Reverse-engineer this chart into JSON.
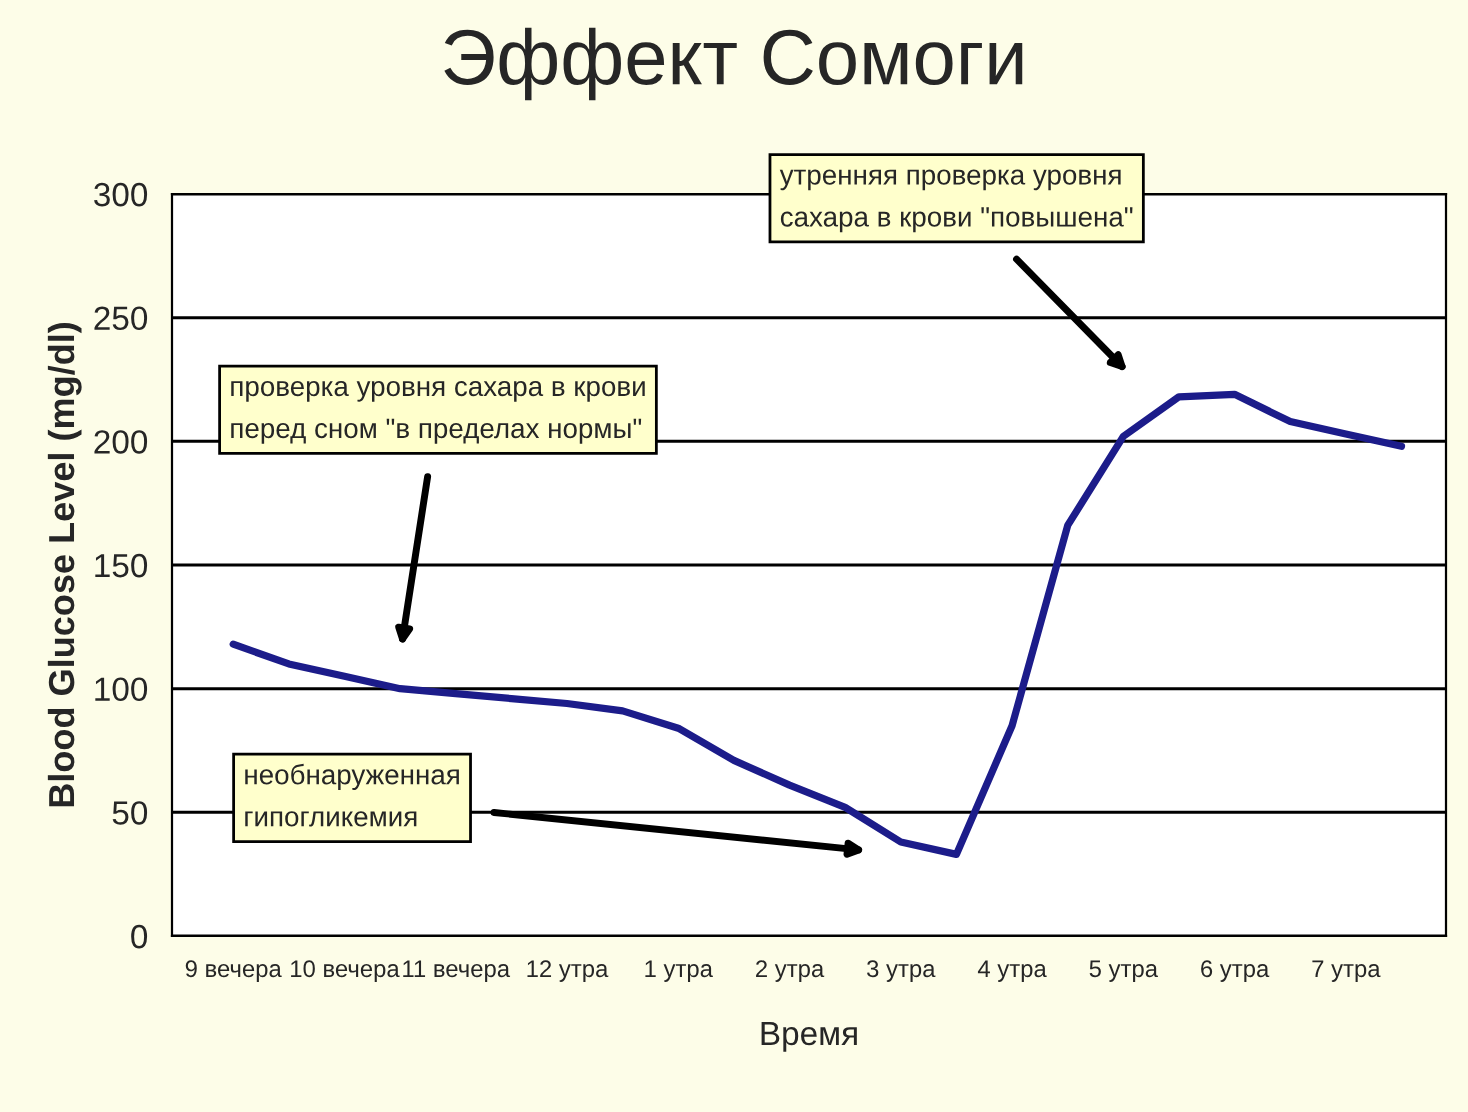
{
  "chart_data": {
    "type": "line",
    "title": "Эффект Сомоги",
    "xlabel": "Время",
    "ylabel": "Blood Glucose Level (mg/dl)",
    "categories": [
      "9 вечера",
      null,
      "10 вечера",
      null,
      "11 вечера",
      null,
      "12 утра",
      null,
      "1 утра",
      null,
      "2 утра",
      null,
      "3 утра",
      null,
      "4 утра",
      null,
      "5 утра",
      null,
      "6 утра",
      null,
      "7 утра",
      null
    ],
    "series": [
      {
        "color": "#1c1c8a",
        "values": [
          118,
          110,
          105,
          100,
          98,
          96,
          94,
          91,
          84,
          71,
          61,
          52,
          38,
          33,
          85,
          166,
          202,
          218,
          219,
          208,
          203,
          198
        ]
      }
    ],
    "ylim": [
      0,
      300
    ],
    "yticks": [
      0,
      50,
      100,
      150,
      200,
      250,
      300
    ],
    "grid": "y",
    "legend": false,
    "marker": "none",
    "line_style": "solid",
    "annotations": [
      "проверка уровня сахара в крови\nперед сном \"в пределах нормы\"",
      "необнаруженная\nгипогликемия",
      "утренняя проверка уровня\nсахара в крови \"повышена\""
    ]
  }
}
